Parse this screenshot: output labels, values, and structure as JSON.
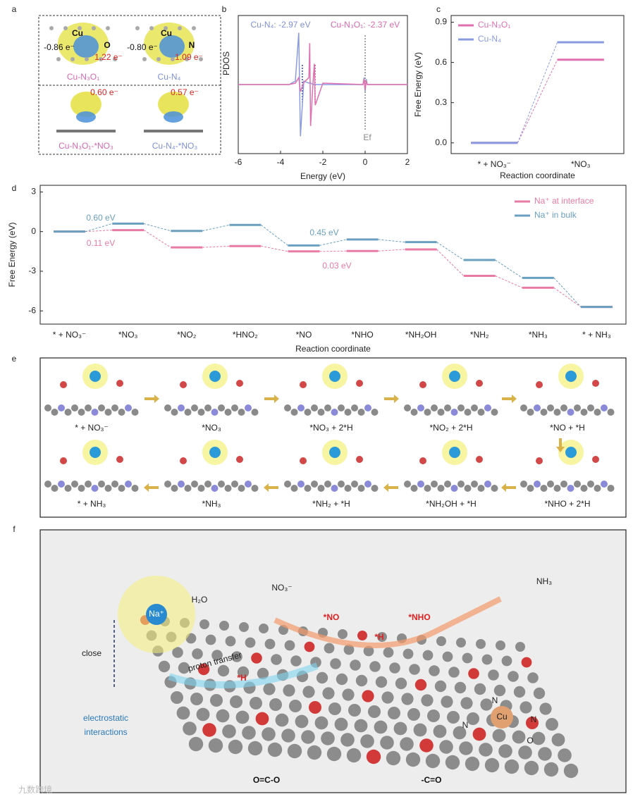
{
  "panels": [
    "a",
    "b",
    "c",
    "d",
    "e",
    "f"
  ],
  "panel_a": {
    "labels": [
      "Cu",
      "O",
      "-0.86 e⁻",
      "1.22 e⁻",
      "Cu-N₃O₁",
      "Cu",
      "N",
      "-0.80 e⁻",
      "1.09 e⁻",
      "Cu-N₄",
      "0.60 e⁻",
      "0.57 e⁻",
      "Cu-N₃O₁-*NO₃",
      "Cu-N₄-*NO₃"
    ]
  },
  "chart_data": [
    {
      "type": "line",
      "xlabel": "Energy (eV)",
      "ylabel": "PDOS",
      "annotations": [
        "Cu-N₄: -2.97 eV",
        "Cu-N₃O₁: -2.37 eV",
        "Ef"
      ],
      "x": [
        -6,
        -3.6,
        -3.3,
        -3.14,
        -3.1,
        -3.06,
        -2.9,
        -2.66,
        -2.62,
        -2.58,
        -2.45,
        -2.4,
        -2.36,
        -2,
        -0.1,
        -0.05,
        0,
        0.05,
        0.1,
        2
      ],
      "series": [
        {
          "name": "Cu-N₄",
          "color": "#8a9be0",
          "values": [
            0,
            0,
            0.05,
            0.75,
            0,
            -0.75,
            0.05,
            0.02,
            0.03,
            0.02,
            0,
            0,
            0,
            0,
            0,
            0.1,
            -0.1,
            0.08,
            0,
            0
          ]
        },
        {
          "name": "Cu-N₃O₁",
          "color": "#e070b0",
          "values": [
            0,
            0,
            0.02,
            0.1,
            0,
            -0.1,
            0.03,
            0.1,
            0.6,
            -0.6,
            0.1,
            0.3,
            -0.3,
            0.02,
            0,
            0.08,
            -0.08,
            0.06,
            0,
            0
          ]
        }
      ],
      "vlines": [
        -2.97,
        -2.37,
        0
      ],
      "xlim": [
        -6,
        2
      ],
      "xticks": [
        -6,
        -4,
        -2,
        0,
        2
      ],
      "ylim": [
        -1,
        1
      ]
    },
    {
      "type": "energy",
      "xlabel": "Reaction coordinate",
      "ylabel": "Free Energy (eV)",
      "categories": [
        "* + NO₃⁻",
        "*NO₃"
      ],
      "series": [
        {
          "name": "Cu-N₃O₁",
          "color": "#e070b0",
          "values": [
            0,
            0.62
          ]
        },
        {
          "name": "Cu-N₄",
          "color": "#8a9be0",
          "values": [
            0,
            0.75
          ]
        }
      ],
      "ylim": [
        -0.08,
        0.95
      ],
      "yticks": [
        {
          "value": 0,
          "label": "0.0"
        },
        0.3,
        0.6,
        0.9
      ],
      "legend": "upper left"
    },
    {
      "type": "energy",
      "xlabel": "Reaction coordinate",
      "ylabel": "Free Energy (eV)",
      "annotations": [
        "0.60 eV",
        "0.11 eV",
        "0.45 eV",
        "0.03 eV"
      ],
      "categories": [
        "* + NO₃⁻",
        "*NO₃",
        "*NO₂",
        "*HNO₂",
        "*NO",
        "*NHO",
        "*NH₂OH",
        "*NH₂",
        "*NH₃",
        "* + NH₃"
      ],
      "series": [
        {
          "name": "Na⁺ at interface",
          "color": "#e87ba3",
          "values": [
            0,
            0.11,
            -1.2,
            -1.1,
            -1.5,
            -1.47,
            -1.35,
            -3.35,
            -4.25,
            -5.7
          ]
        },
        {
          "name": "Na⁺ in bulk",
          "color": "#6a9fbf",
          "values": [
            0,
            0.6,
            0.05,
            0.5,
            -1.05,
            -0.6,
            -0.8,
            -2.15,
            -3.5,
            -5.7
          ]
        }
      ],
      "ylim": [
        -7,
        3.5
      ],
      "yticks": [
        3,
        0,
        -3,
        -6
      ],
      "legend": "upper right"
    }
  ],
  "panel_e": {
    "labels": [
      "* + NO₃⁻",
      "*NO₃",
      "*NO₃ + 2*H",
      "*NO₂ + 2*H",
      "*NO + *H",
      "*NHO + 2*H",
      "*NH₂OH + *H",
      "*NH₂ + *H",
      "*NH₃",
      "* + NH₃"
    ]
  },
  "panel_f": {
    "labels": [
      "H₂O",
      "Na⁺",
      "close",
      "proton transfer",
      "NO₃⁻",
      "*NO",
      "*NHO",
      "*H",
      "*H",
      "NH₃",
      "O=C-O",
      "-C=O",
      "N",
      "N",
      "Cu",
      "N",
      "O"
    ],
    "label_lines": [
      "electrostatic",
      "interactions"
    ]
  },
  "watermark": "九数跨境"
}
